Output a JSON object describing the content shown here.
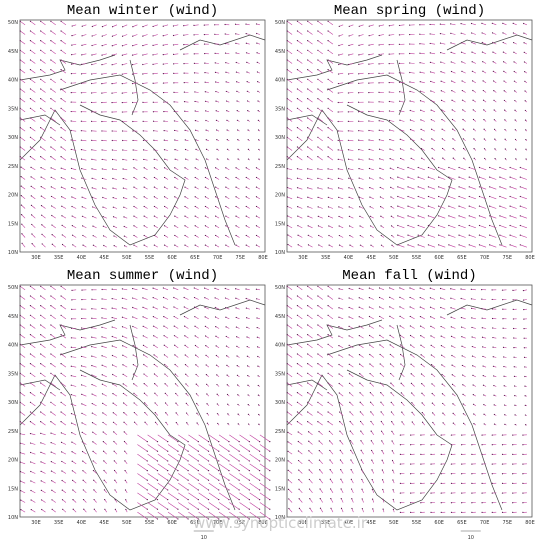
{
  "panels": [
    {
      "title": "Mean winter (wind)"
    },
    {
      "title": "Mean spring (wind)"
    },
    {
      "title": "Mean summer (wind)",
      "reference_label": "10"
    },
    {
      "title": "Mean fall (wind)",
      "reference_label": "10"
    }
  ],
  "longitude_labels": [
    "30E",
    "35E",
    "40E",
    "45E",
    "50E",
    "55E",
    "60E",
    "65E",
    "70E",
    "75E",
    "80E"
  ],
  "latitude_labels": [
    "50N",
    "45N",
    "40N",
    "35N",
    "30N",
    "25N",
    "20N",
    "15N",
    "10N"
  ],
  "watermark": "www.synopticclimate.ir"
}
